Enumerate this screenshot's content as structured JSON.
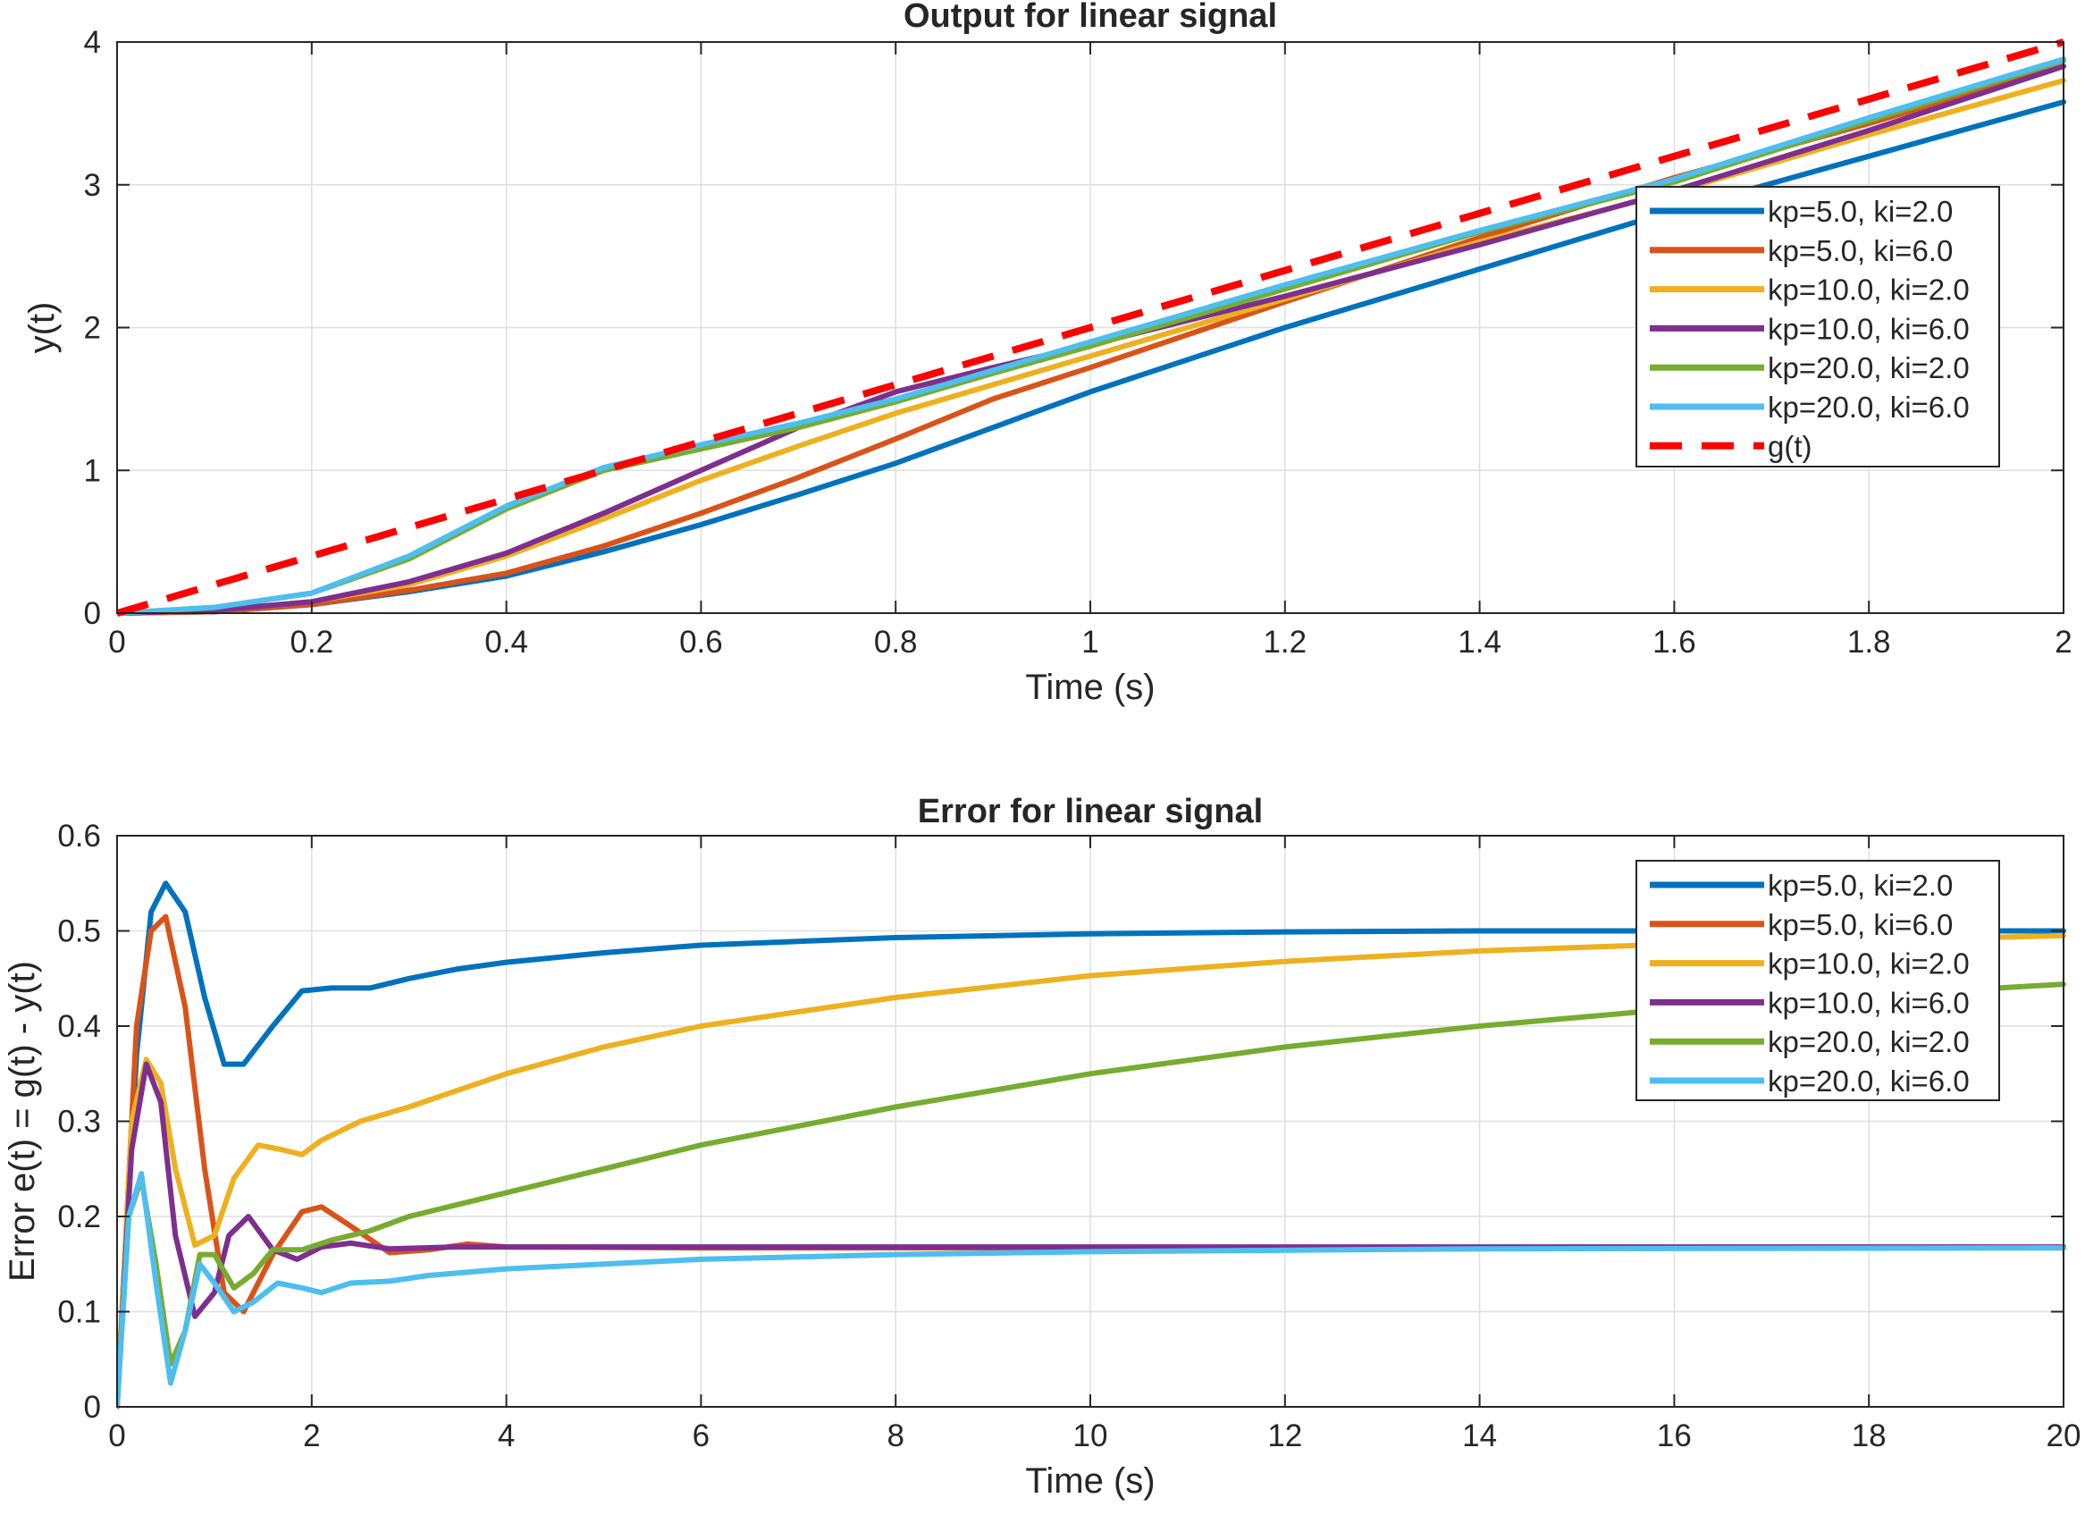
{
  "chart_data": [
    {
      "type": "line",
      "title": "Output for linear signal",
      "xlabel": "Time (s)",
      "ylabel": "y(t)",
      "xlim": [
        0,
        2
      ],
      "ylim": [
        0,
        4
      ],
      "xticks": [
        0,
        0.2,
        0.4,
        0.6,
        0.8,
        1,
        1.2,
        1.4,
        1.6,
        1.8,
        2
      ],
      "xtick_labels": [
        "0",
        "0.2",
        "0.4",
        "0.6",
        "0.8",
        "1",
        "1.2",
        "1.4",
        "1.6",
        "1.8",
        "2"
      ],
      "yticks": [
        0,
        1,
        2,
        3,
        4
      ],
      "ytick_labels": [
        "0",
        "1",
        "2",
        "3",
        "4"
      ],
      "grid": true,
      "legend_position": "right",
      "series": [
        {
          "name": "kp=5.0, ki=2.0",
          "color": "#0072BD",
          "dash": false,
          "x": [
            0,
            0.1,
            0.2,
            0.3,
            0.4,
            0.5,
            0.6,
            0.7,
            0.8,
            0.9,
            1.0,
            1.2,
            1.4,
            1.6,
            1.8,
            2.0
          ],
          "y": [
            0,
            0.01,
            0.06,
            0.15,
            0.26,
            0.43,
            0.62,
            0.83,
            1.05,
            1.3,
            1.55,
            2.0,
            2.41,
            2.82,
            3.2,
            3.58
          ]
        },
        {
          "name": "kp=5.0, ki=6.0",
          "color": "#D95319",
          "dash": false,
          "x": [
            0,
            0.1,
            0.2,
            0.3,
            0.4,
            0.5,
            0.6,
            0.7,
            0.8,
            0.9,
            1.0,
            1.2,
            1.4,
            1.6,
            1.8,
            2.0
          ],
          "y": [
            0,
            0.01,
            0.06,
            0.16,
            0.28,
            0.47,
            0.7,
            0.95,
            1.22,
            1.5,
            1.72,
            2.18,
            2.63,
            3.05,
            3.43,
            3.83
          ]
        },
        {
          "name": "kp=10.0, ki=2.0",
          "color": "#EDB120",
          "dash": false,
          "x": [
            0,
            0.1,
            0.2,
            0.3,
            0.4,
            0.5,
            0.6,
            0.7,
            0.8,
            0.9,
            1.0,
            1.2,
            1.4,
            1.6,
            1.8,
            2.0
          ],
          "y": [
            0,
            0.02,
            0.08,
            0.2,
            0.4,
            0.66,
            0.93,
            1.17,
            1.4,
            1.6,
            1.8,
            2.2,
            2.6,
            2.95,
            3.35,
            3.73
          ]
        },
        {
          "name": "kp=10.0, ki=6.0",
          "color": "#7E2F8E",
          "dash": false,
          "x": [
            0,
            0.1,
            0.2,
            0.3,
            0.4,
            0.5,
            0.6,
            0.7,
            0.8,
            0.9,
            1.0,
            1.2,
            1.4,
            1.6,
            1.8,
            2.0
          ],
          "y": [
            0,
            0.02,
            0.08,
            0.22,
            0.42,
            0.7,
            1.0,
            1.3,
            1.55,
            1.72,
            1.88,
            2.22,
            2.58,
            2.96,
            3.38,
            3.83
          ]
        },
        {
          "name": "kp=20.0, ki=2.0",
          "color": "#77AC30",
          "dash": false,
          "x": [
            0,
            0.1,
            0.2,
            0.3,
            0.4,
            0.5,
            0.6,
            0.7,
            0.8,
            0.9,
            1.0,
            1.2,
            1.4,
            1.6,
            1.8,
            2.0
          ],
          "y": [
            0,
            0.04,
            0.14,
            0.38,
            0.73,
            1.0,
            1.15,
            1.3,
            1.48,
            1.68,
            1.87,
            2.27,
            2.67,
            3.02,
            3.45,
            3.87
          ]
        },
        {
          "name": "kp=20.0, ki=6.0",
          "color": "#4DBEEE",
          "dash": false,
          "x": [
            0,
            0.1,
            0.2,
            0.3,
            0.4,
            0.5,
            0.6,
            0.7,
            0.8,
            0.9,
            1.0,
            1.2,
            1.4,
            1.6,
            1.8,
            2.0
          ],
          "y": [
            0,
            0.04,
            0.14,
            0.4,
            0.75,
            1.02,
            1.18,
            1.33,
            1.5,
            1.7,
            1.9,
            2.3,
            2.68,
            3.04,
            3.47,
            3.88
          ]
        },
        {
          "name": "g(t)",
          "color": "#FF0000",
          "dash": true,
          "x": [
            0,
            2
          ],
          "y": [
            0,
            4
          ]
        }
      ]
    },
    {
      "type": "line",
      "title": "Error for linear signal",
      "xlabel": "Time (s)",
      "ylabel": "Error e(t) = g(t) - y(t)",
      "xlim": [
        0,
        20
      ],
      "ylim": [
        0,
        0.6
      ],
      "xticks": [
        0,
        2,
        4,
        6,
        8,
        10,
        12,
        14,
        16,
        18,
        20
      ],
      "xtick_labels": [
        "0",
        "2",
        "4",
        "6",
        "8",
        "10",
        "12",
        "14",
        "16",
        "18",
        "20"
      ],
      "yticks": [
        0,
        0.1,
        0.2,
        0.3,
        0.4,
        0.5,
        0.6
      ],
      "ytick_labels": [
        "0",
        "0.1",
        "0.2",
        "0.3",
        "0.4",
        "0.5",
        "0.6"
      ],
      "grid": true,
      "legend_position": "top-right",
      "series": [
        {
          "name": "kp=5.0, ki=2.0",
          "color": "#0072BD",
          "dash": false,
          "x": [
            0,
            0.2,
            0.35,
            0.5,
            0.7,
            0.9,
            1.1,
            1.3,
            1.6,
            1.9,
            2.2,
            2.6,
            3.0,
            3.5,
            4,
            5,
            6,
            8,
            10,
            12,
            14,
            16,
            18,
            20
          ],
          "y": [
            0,
            0.37,
            0.52,
            0.55,
            0.52,
            0.43,
            0.36,
            0.36,
            0.4,
            0.437,
            0.44,
            0.44,
            0.45,
            0.46,
            0.467,
            0.477,
            0.485,
            0.493,
            0.497,
            0.499,
            0.5,
            0.5,
            0.5,
            0.5
          ]
        },
        {
          "name": "kp=5.0, ki=6.0",
          "color": "#D95319",
          "dash": false,
          "x": [
            0,
            0.2,
            0.35,
            0.5,
            0.7,
            0.9,
            1.1,
            1.3,
            1.6,
            1.9,
            2.1,
            2.4,
            2.8,
            3.2,
            3.6,
            4,
            6,
            10,
            20
          ],
          "y": [
            0,
            0.4,
            0.5,
            0.515,
            0.42,
            0.25,
            0.12,
            0.1,
            0.16,
            0.205,
            0.21,
            0.19,
            0.162,
            0.165,
            0.171,
            0.168,
            0.167,
            0.167,
            0.167
          ]
        },
        {
          "name": "kp=10.0, ki=2.0",
          "color": "#EDB120",
          "dash": false,
          "x": [
            0,
            0.15,
            0.3,
            0.45,
            0.6,
            0.8,
            1.0,
            1.2,
            1.45,
            1.7,
            1.9,
            2.1,
            2.5,
            3,
            4,
            5,
            6,
            8,
            10,
            12,
            14,
            16,
            18,
            20
          ],
          "y": [
            0,
            0.3,
            0.365,
            0.34,
            0.25,
            0.17,
            0.18,
            0.24,
            0.275,
            0.27,
            0.265,
            0.28,
            0.3,
            0.315,
            0.35,
            0.378,
            0.4,
            0.43,
            0.453,
            0.468,
            0.479,
            0.486,
            0.49,
            0.495
          ]
        },
        {
          "name": "kp=10.0, ki=6.0",
          "color": "#7E2F8E",
          "dash": false,
          "x": [
            0,
            0.15,
            0.3,
            0.45,
            0.6,
            0.8,
            1.0,
            1.15,
            1.35,
            1.6,
            1.85,
            2.1,
            2.4,
            2.8,
            3.5,
            5,
            10,
            20
          ],
          "y": [
            0,
            0.27,
            0.36,
            0.32,
            0.18,
            0.095,
            0.12,
            0.18,
            0.2,
            0.165,
            0.155,
            0.168,
            0.172,
            0.166,
            0.168,
            0.168,
            0.168,
            0.168
          ]
        },
        {
          "name": "kp=20.0, ki=2.0",
          "color": "#77AC30",
          "dash": false,
          "x": [
            0,
            0.12,
            0.25,
            0.4,
            0.55,
            0.7,
            0.85,
            1.0,
            1.2,
            1.4,
            1.6,
            1.9,
            2.2,
            2.6,
            3,
            4,
            5,
            6,
            8,
            10,
            12,
            14,
            16,
            18,
            20
          ],
          "y": [
            0,
            0.2,
            0.24,
            0.15,
            0.045,
            0.08,
            0.16,
            0.16,
            0.125,
            0.14,
            0.165,
            0.165,
            0.175,
            0.185,
            0.2,
            0.225,
            0.25,
            0.275,
            0.315,
            0.35,
            0.378,
            0.4,
            0.418,
            0.432,
            0.444
          ]
        },
        {
          "name": "kp=20.0, ki=6.0",
          "color": "#4DBEEE",
          "dash": false,
          "x": [
            0,
            0.12,
            0.25,
            0.4,
            0.55,
            0.7,
            0.85,
            1.0,
            1.2,
            1.4,
            1.65,
            1.9,
            2.1,
            2.4,
            2.8,
            3.2,
            4,
            5,
            6,
            8,
            10,
            14,
            20
          ],
          "y": [
            0,
            0.2,
            0.245,
            0.13,
            0.025,
            0.08,
            0.15,
            0.13,
            0.1,
            0.11,
            0.13,
            0.125,
            0.12,
            0.13,
            0.132,
            0.138,
            0.145,
            0.15,
            0.155,
            0.16,
            0.163,
            0.166,
            0.167
          ]
        }
      ]
    }
  ]
}
